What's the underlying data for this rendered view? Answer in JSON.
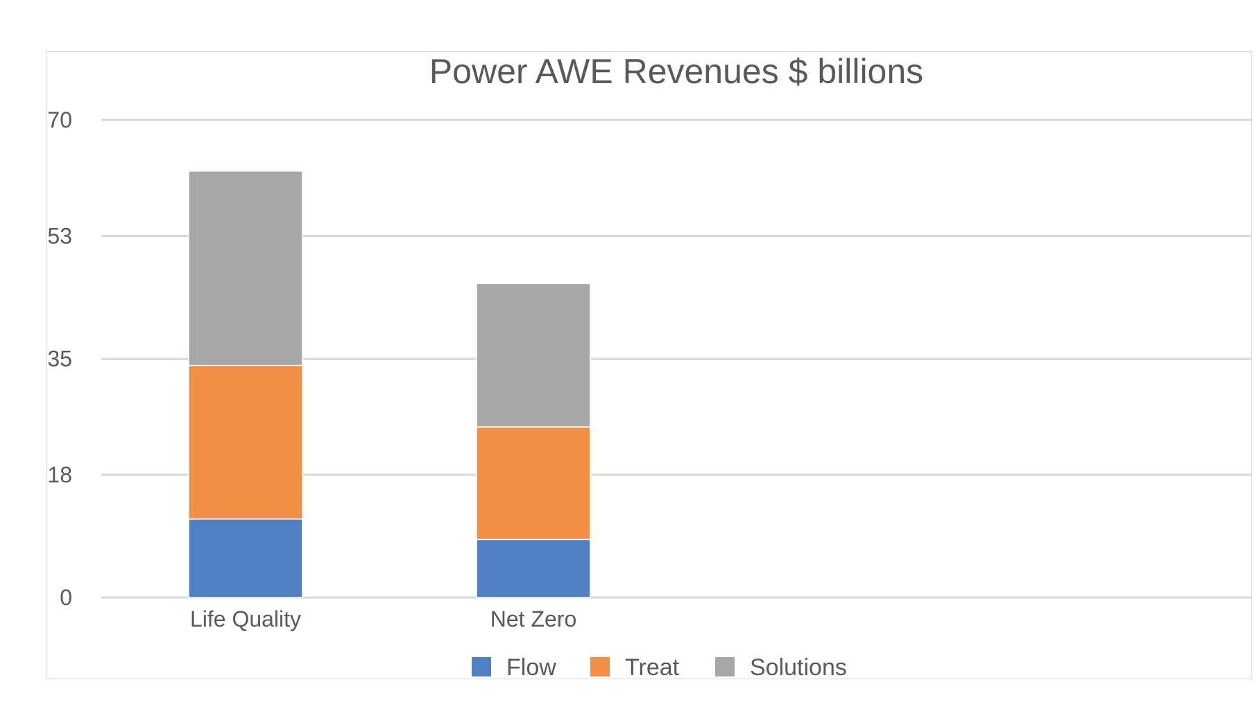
{
  "chart_data": {
    "type": "bar",
    "stacked": true,
    "title": "Power AWE Revenues $ billions",
    "xlabel": "",
    "ylabel": "",
    "categories": [
      "Life Quality",
      "Net Zero"
    ],
    "series": [
      {
        "name": "Flow",
        "color": "#4f81c4",
        "values": [
          11.5,
          8.5
        ]
      },
      {
        "name": "Treat",
        "color": "#f28f47",
        "values": [
          22.5,
          16.5
        ]
      },
      {
        "name": "Solutions",
        "color": "#a6a7a6",
        "values": [
          28.5,
          21
        ]
      }
    ],
    "y_ticks": [
      "0",
      "18",
      "35",
      "53",
      "70"
    ],
    "ylim": [
      0,
      70
    ],
    "grid": true,
    "legend_position": "bottom"
  }
}
